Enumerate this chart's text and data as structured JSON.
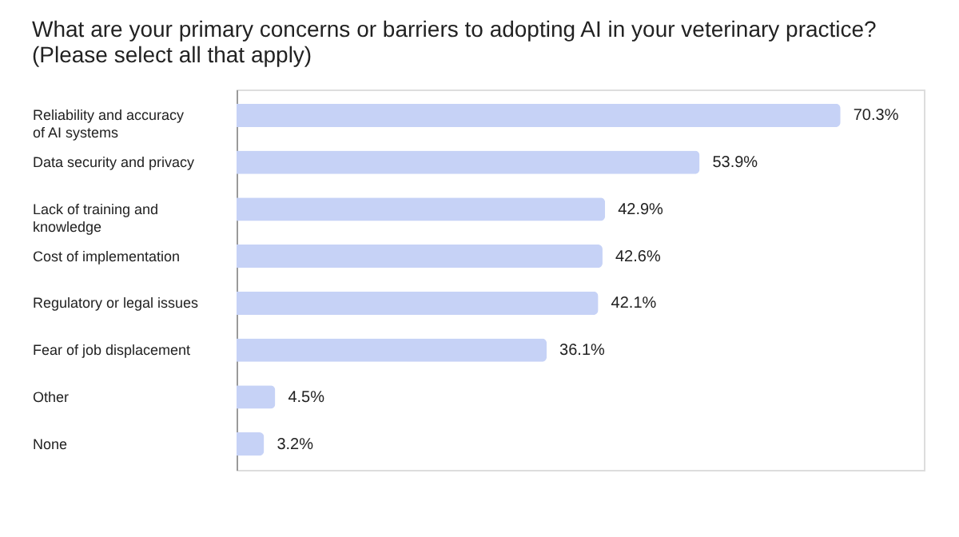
{
  "chart_data": {
    "type": "bar",
    "orientation": "horizontal",
    "title": "What are your primary concerns or barriers to adopting AI in your veterinary practice? (Please select all that apply)",
    "categories": [
      "Reliability and accuracy of AI systems",
      "Data security and privacy",
      "Lack of training and knowledge",
      "Cost of implementation",
      "Regulatory or legal issues",
      "Fear of job displacement",
      "Other",
      "None"
    ],
    "values": [
      70.3,
      53.9,
      42.9,
      42.6,
      42.1,
      36.1,
      4.5,
      3.2
    ],
    "value_labels": [
      "70.3%",
      "53.9%",
      "42.9%",
      "42.6%",
      "42.1%",
      "36.1%",
      "4.5%",
      "3.2%"
    ],
    "color": "#c6d2f6",
    "grid": false
  }
}
